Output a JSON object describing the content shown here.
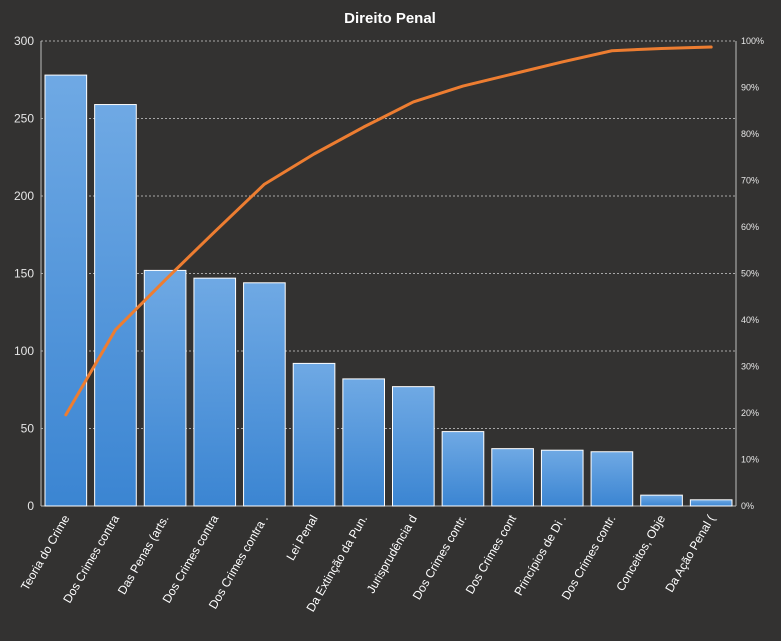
{
  "chart_data": {
    "type": "bar",
    "title": "Direito  Penal",
    "categories": [
      "Teoria do Crime",
      "Dos Crimes contra",
      "Das Penas (arts.",
      "Dos Crimes contra",
      "Dos Crimes contra .",
      "Lei Penal",
      "Da Extinção da Pun.",
      "Jurisprudência d",
      "Dos Crimes contr.",
      "Dos Crimes cont",
      "Princípios de Di .",
      "Dos Crimes contr.",
      "Conceitos, Obje",
      "Da Ação Penal ("
    ],
    "series": [
      {
        "type": "bar",
        "values": [
          278,
          259,
          152,
          147,
          144,
          92,
          82,
          77,
          48,
          37,
          36,
          35,
          7,
          4
        ]
      },
      {
        "type": "line",
        "axis": "right",
        "values": [
          19.6,
          37.9,
          48.6,
          59.0,
          69.2,
          75.7,
          81.5,
          86.9,
          90.3,
          92.9,
          95.5,
          97.9,
          98.4,
          98.7
        ]
      }
    ],
    "ylim": [
      0,
      300
    ],
    "yticks": [
      0,
      50,
      100,
      150,
      200,
      250,
      300
    ],
    "y2lim": [
      0,
      100
    ],
    "y2ticks": [
      "0%",
      "10%",
      "20%",
      "30%",
      "40%",
      "50%",
      "60%",
      "70%",
      "80%",
      "90%",
      "100%"
    ],
    "grid": true,
    "colors": {
      "bar": "#4a90d9",
      "bar_light": "#6aa8e6",
      "line": "#ed7d31",
      "grid": "#a8a8a8",
      "background": "#333231"
    }
  }
}
